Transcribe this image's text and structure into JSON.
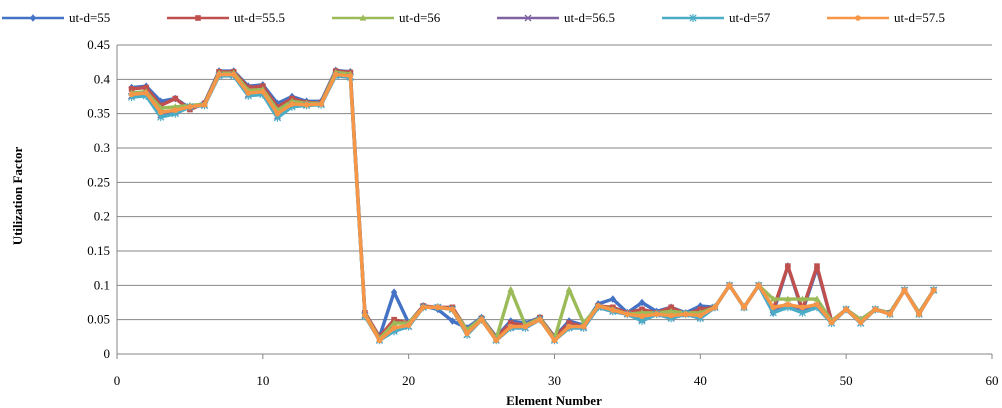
{
  "chart_data": {
    "type": "line",
    "title": "",
    "xlabel": "Element Number",
    "ylabel": "Utilization Factor",
    "xlim": [
      0,
      60
    ],
    "ylim": [
      0,
      0.45
    ],
    "xticks": [
      0,
      10,
      20,
      30,
      40,
      50,
      60
    ],
    "yticks": [
      0,
      0.05,
      0.1,
      0.15,
      0.2,
      0.25,
      0.3,
      0.35,
      0.4,
      0.45
    ],
    "xtick_labels": [
      "0",
      "10",
      "20",
      "30",
      "40",
      "50",
      "60"
    ],
    "ytick_labels": [
      "0",
      "0.05",
      "0.1",
      "0.15",
      "0.2",
      "0.25",
      "0.3",
      "0.35",
      "0.4",
      "0.45"
    ],
    "grid": "horizontal",
    "legend_position": "top",
    "x": [
      1,
      2,
      3,
      4,
      5,
      6,
      7,
      8,
      9,
      10,
      11,
      12,
      13,
      14,
      15,
      16,
      17,
      18,
      19,
      20,
      21,
      22,
      23,
      24,
      25,
      26,
      27,
      28,
      29,
      30,
      31,
      32,
      33,
      34,
      35,
      36,
      37,
      38,
      39,
      40,
      41,
      42,
      43,
      44,
      45,
      46,
      47,
      48,
      49,
      50,
      51,
      52,
      53,
      54,
      55,
      56
    ],
    "series": [
      {
        "name": "ut-d=55",
        "color": "#4472c4",
        "marker": "diamond",
        "values": [
          0.388,
          0.39,
          0.368,
          0.372,
          0.358,
          0.366,
          0.412,
          0.412,
          0.39,
          0.392,
          0.365,
          0.375,
          0.368,
          0.368,
          0.413,
          0.411,
          0.06,
          0.025,
          0.09,
          0.045,
          0.07,
          0.065,
          0.048,
          0.038,
          0.053,
          0.025,
          0.048,
          0.045,
          0.053,
          0.025,
          0.048,
          0.042,
          0.073,
          0.08,
          0.06,
          0.075,
          0.062,
          0.068,
          0.06,
          0.07,
          0.068,
          0.1,
          0.068,
          0.1,
          0.06,
          0.128,
          0.062,
          0.125,
          0.048,
          0.065,
          0.05,
          0.065,
          0.06,
          0.093,
          0.06,
          0.093
        ]
      },
      {
        "name": "ut-d=55.5",
        "color": "#c0504d",
        "marker": "square",
        "values": [
          0.386,
          0.388,
          0.362,
          0.372,
          0.356,
          0.365,
          0.411,
          0.411,
          0.388,
          0.39,
          0.36,
          0.372,
          0.366,
          0.366,
          0.412,
          0.41,
          0.06,
          0.025,
          0.05,
          0.045,
          0.07,
          0.068,
          0.068,
          0.035,
          0.052,
          0.024,
          0.045,
          0.042,
          0.053,
          0.024,
          0.045,
          0.04,
          0.07,
          0.068,
          0.06,
          0.065,
          0.06,
          0.068,
          0.058,
          0.065,
          0.068,
          0.1,
          0.068,
          0.1,
          0.065,
          0.128,
          0.065,
          0.128,
          0.048,
          0.065,
          0.05,
          0.065,
          0.06,
          0.093,
          0.06,
          0.093
        ]
      },
      {
        "name": "ut-d=56",
        "color": "#9bbb59",
        "marker": "triangle",
        "values": [
          0.38,
          0.382,
          0.358,
          0.36,
          0.362,
          0.364,
          0.409,
          0.409,
          0.384,
          0.385,
          0.355,
          0.368,
          0.365,
          0.365,
          0.41,
          0.408,
          0.058,
          0.022,
          0.045,
          0.045,
          0.068,
          0.068,
          0.065,
          0.035,
          0.052,
          0.022,
          0.094,
          0.042,
          0.052,
          0.022,
          0.094,
          0.045,
          0.07,
          0.065,
          0.058,
          0.06,
          0.06,
          0.062,
          0.06,
          0.06,
          0.068,
          0.1,
          0.068,
          0.1,
          0.08,
          0.08,
          0.08,
          0.08,
          0.048,
          0.065,
          0.05,
          0.065,
          0.06,
          0.093,
          0.06,
          0.093
        ]
      },
      {
        "name": "ut-d=56.5",
        "color": "#8064a2",
        "marker": "x",
        "values": [
          0.376,
          0.378,
          0.348,
          0.352,
          0.36,
          0.362,
          0.406,
          0.406,
          0.378,
          0.38,
          0.346,
          0.362,
          0.362,
          0.364,
          0.406,
          0.404,
          0.056,
          0.02,
          0.035,
          0.04,
          0.068,
          0.068,
          0.065,
          0.028,
          0.05,
          0.02,
          0.038,
          0.038,
          0.05,
          0.02,
          0.038,
          0.038,
          0.068,
          0.062,
          0.058,
          0.05,
          0.058,
          0.052,
          0.058,
          0.052,
          0.068,
          0.1,
          0.068,
          0.1,
          0.065,
          0.07,
          0.065,
          0.07,
          0.045,
          0.065,
          0.045,
          0.065,
          0.058,
          0.093,
          0.058,
          0.093
        ]
      },
      {
        "name": "ut-d=57",
        "color": "#4bacc6",
        "marker": "star",
        "values": [
          0.374,
          0.376,
          0.345,
          0.35,
          0.36,
          0.362,
          0.405,
          0.405,
          0.376,
          0.378,
          0.344,
          0.36,
          0.362,
          0.363,
          0.405,
          0.403,
          0.055,
          0.02,
          0.033,
          0.04,
          0.068,
          0.068,
          0.065,
          0.028,
          0.05,
          0.02,
          0.038,
          0.038,
          0.05,
          0.02,
          0.038,
          0.038,
          0.068,
          0.062,
          0.058,
          0.048,
          0.058,
          0.052,
          0.058,
          0.052,
          0.068,
          0.1,
          0.068,
          0.1,
          0.06,
          0.068,
          0.06,
          0.068,
          0.045,
          0.065,
          0.045,
          0.065,
          0.058,
          0.093,
          0.058,
          0.093
        ]
      },
      {
        "name": "ut-d=57.5",
        "color": "#f79646",
        "marker": "circle",
        "values": [
          0.378,
          0.38,
          0.352,
          0.355,
          0.36,
          0.363,
          0.407,
          0.407,
          0.38,
          0.382,
          0.35,
          0.364,
          0.363,
          0.364,
          0.407,
          0.405,
          0.057,
          0.02,
          0.038,
          0.042,
          0.068,
          0.068,
          0.065,
          0.03,
          0.05,
          0.02,
          0.04,
          0.04,
          0.05,
          0.02,
          0.04,
          0.04,
          0.07,
          0.064,
          0.058,
          0.055,
          0.058,
          0.056,
          0.058,
          0.056,
          0.068,
          0.1,
          0.068,
          0.1,
          0.068,
          0.072,
          0.068,
          0.072,
          0.046,
          0.065,
          0.046,
          0.065,
          0.058,
          0.093,
          0.058,
          0.093
        ]
      }
    ]
  }
}
